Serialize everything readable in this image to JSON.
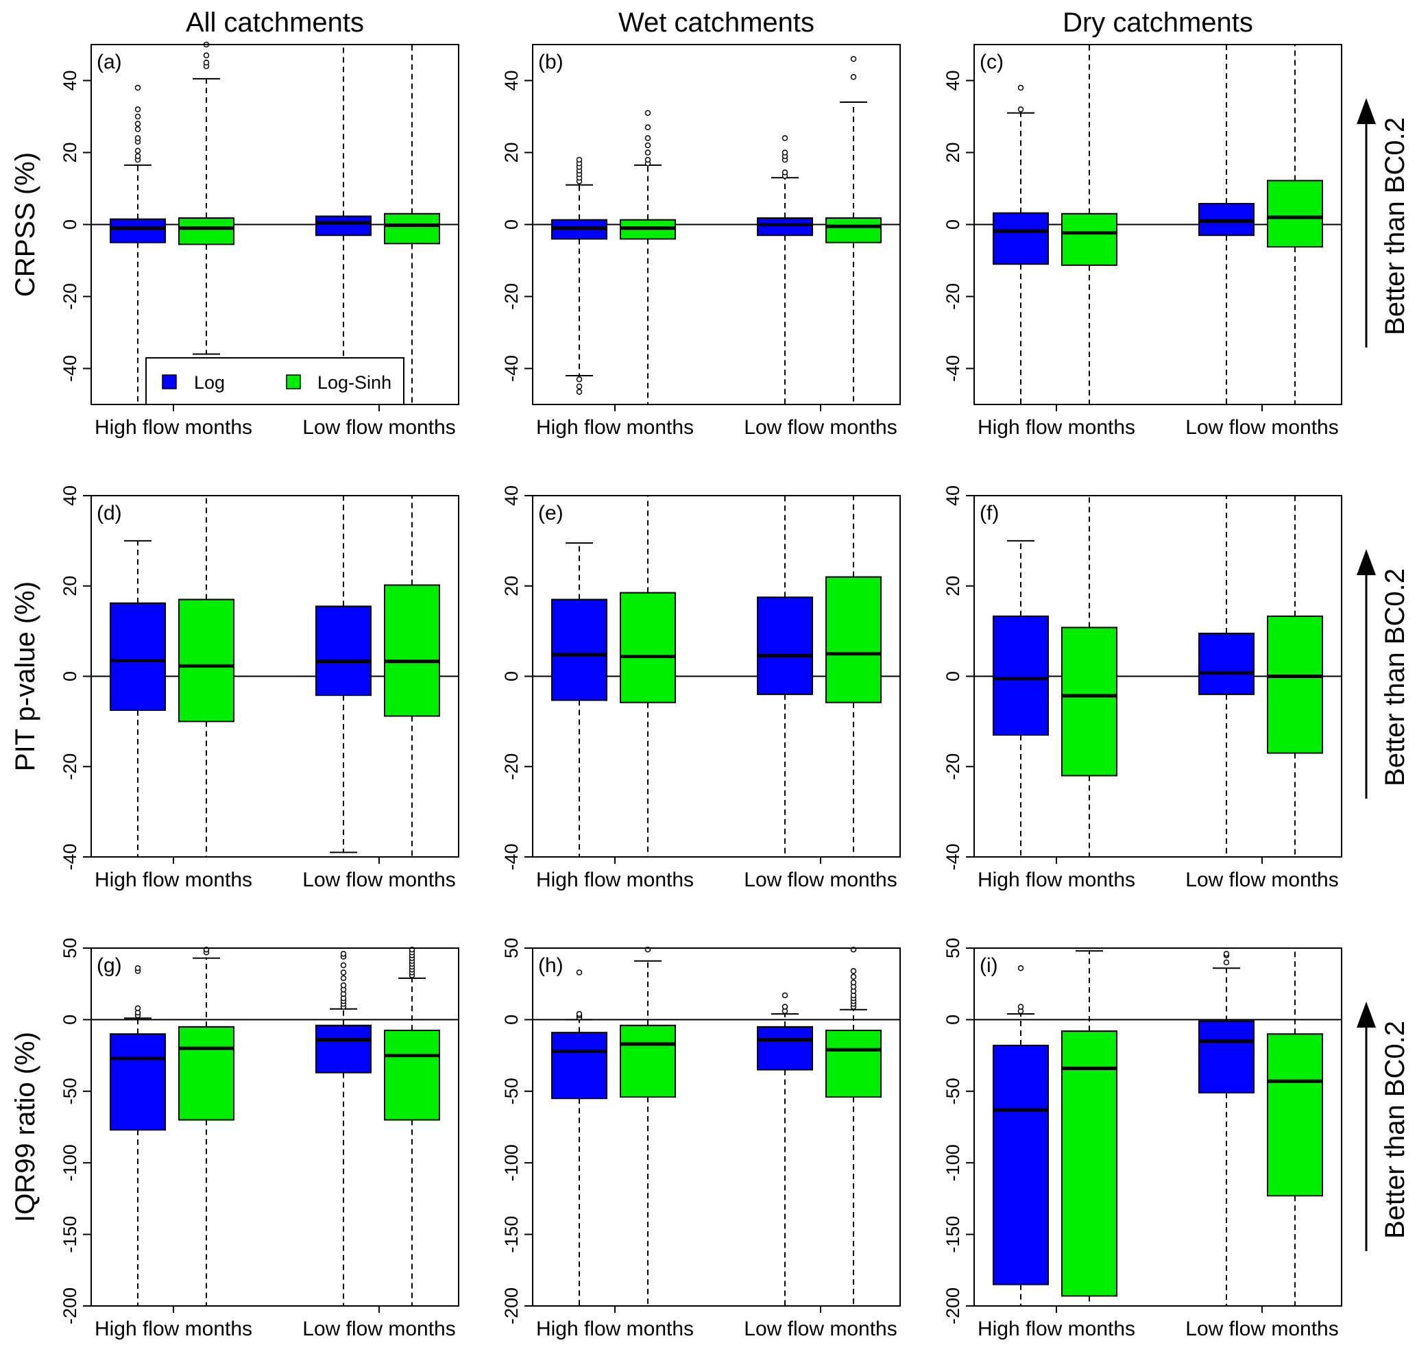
{
  "column_titles": [
    "All catchments",
    "Wet catchments",
    "Dry catchments"
  ],
  "row_labels": [
    "CRPSS (%)",
    "PIT p-value (%)",
    "IQR99 ratio (%)"
  ],
  "annotation": "Better than BC0.2",
  "legend": [
    {
      "label": "Log",
      "color": "#0000ff"
    },
    {
      "label": "Log-Sinh",
      "color": "#00ee00"
    }
  ],
  "colors": {
    "log": "#0000ff",
    "log_sinh": "#00ee00"
  },
  "chart_data": [
    {
      "type": "box",
      "panel": "(a)",
      "row": 0,
      "col": 0,
      "ylabel": "CRPSS (%)",
      "ylim": [
        -50,
        50
      ],
      "yticks": [
        -40,
        -20,
        0,
        20,
        40
      ],
      "categories": [
        "High flow months",
        "Low flow months"
      ],
      "series": [
        {
          "name": "Log",
          "boxes": [
            {
              "q1": -5,
              "median": -1,
              "q3": 1.5,
              "low": -50,
              "high": 16.5,
              "outliers": [
                18,
                19,
                20.5,
                23,
                24,
                26.5,
                28,
                30,
                32,
                38
              ]
            },
            {
              "q1": -3,
              "median": 0.5,
              "q3": 2.3,
              "low": -50,
              "high": 50,
              "outliers": []
            }
          ]
        },
        {
          "name": "Log-Sinh",
          "boxes": [
            {
              "q1": -5.5,
              "median": -1,
              "q3": 1.8,
              "low": -36,
              "high": 40.5,
              "outliers": [
                44,
                45,
                47,
                50
              ]
            },
            {
              "q1": -5.3,
              "median": -0.2,
              "q3": 3,
              "low": -50,
              "high": 50,
              "outliers": []
            }
          ]
        }
      ]
    },
    {
      "type": "box",
      "panel": "(b)",
      "row": 0,
      "col": 1,
      "ylabel": "CRPSS (%)",
      "ylim": [
        -50,
        50
      ],
      "yticks": [
        -40,
        -20,
        0,
        20,
        40
      ],
      "categories": [
        "High flow months",
        "Low flow months"
      ],
      "series": [
        {
          "name": "Log",
          "boxes": [
            {
              "q1": -4,
              "median": -1,
              "q3": 1.3,
              "low": -42,
              "high": 11,
              "outliers": [
                12,
                13,
                14,
                15,
                16,
                17,
                18,
                -43,
                -45,
                -46.5
              ]
            },
            {
              "q1": -3,
              "median": 0,
              "q3": 1.8,
              "low": -50,
              "high": 13,
              "outliers": [
                13.5,
                14.5,
                18,
                19,
                20,
                24
              ]
            }
          ]
        },
        {
          "name": "Log-Sinh",
          "boxes": [
            {
              "q1": -4,
              "median": -1,
              "q3": 1.3,
              "low": -50,
              "high": 16.5,
              "outliers": [
                17,
                18,
                20,
                22,
                24,
                27,
                31
              ]
            },
            {
              "q1": -5,
              "median": -0.5,
              "q3": 1.8,
              "low": -50,
              "high": 34,
              "outliers": [
                41,
                46
              ]
            }
          ]
        }
      ]
    },
    {
      "type": "box",
      "panel": "(c)",
      "row": 0,
      "col": 2,
      "ylabel": "CRPSS (%)",
      "ylim": [
        -50,
        50
      ],
      "yticks": [
        -40,
        -20,
        0,
        20,
        40
      ],
      "categories": [
        "High flow months",
        "Low flow months"
      ],
      "series": [
        {
          "name": "Log",
          "boxes": [
            {
              "q1": -11,
              "median": -1.8,
              "q3": 3.2,
              "low": -50,
              "high": 31,
              "outliers": [
                32,
                38
              ]
            },
            {
              "q1": -3,
              "median": 1,
              "q3": 5.8,
              "low": -50,
              "high": 50,
              "outliers": []
            }
          ]
        },
        {
          "name": "Log-Sinh",
          "boxes": [
            {
              "q1": -11.3,
              "median": -2.3,
              "q3": 3,
              "low": -50,
              "high": 50,
              "outliers": []
            },
            {
              "q1": -6.2,
              "median": 2,
              "q3": 12.2,
              "low": -50,
              "high": 50,
              "outliers": []
            }
          ]
        }
      ]
    },
    {
      "type": "box",
      "panel": "(d)",
      "row": 1,
      "col": 0,
      "ylabel": "PIT p-value (%)",
      "ylim": [
        -40,
        40
      ],
      "yticks": [
        -40,
        -20,
        0,
        20,
        40
      ],
      "categories": [
        "High flow months",
        "Low flow months"
      ],
      "series": [
        {
          "name": "Log",
          "boxes": [
            {
              "q1": -7.5,
              "median": 3.5,
              "q3": 16.2,
              "low": -40,
              "high": 30,
              "outliers": []
            },
            {
              "q1": -4.2,
              "median": 3.3,
              "q3": 15.5,
              "low": -39,
              "high": 40,
              "outliers": []
            }
          ]
        },
        {
          "name": "Log-Sinh",
          "boxes": [
            {
              "q1": -10,
              "median": 2.3,
              "q3": 17,
              "low": -40,
              "high": 40,
              "outliers": []
            },
            {
              "q1": -8.8,
              "median": 3.3,
              "q3": 20.2,
              "low": -40,
              "high": 40,
              "outliers": []
            }
          ]
        }
      ]
    },
    {
      "type": "box",
      "panel": "(e)",
      "row": 1,
      "col": 1,
      "ylabel": "PIT p-value (%)",
      "ylim": [
        -40,
        40
      ],
      "yticks": [
        -40,
        -20,
        0,
        20,
        40
      ],
      "categories": [
        "High flow months",
        "Low flow months"
      ],
      "series": [
        {
          "name": "Log",
          "boxes": [
            {
              "q1": -5.3,
              "median": 4.8,
              "q3": 17,
              "low": -40,
              "high": 29.5,
              "outliers": []
            },
            {
              "q1": -4,
              "median": 4.6,
              "q3": 17.5,
              "low": -40,
              "high": 40,
              "outliers": []
            }
          ]
        },
        {
          "name": "Log-Sinh",
          "boxes": [
            {
              "q1": -5.8,
              "median": 4.4,
              "q3": 18.5,
              "low": -40,
              "high": 40,
              "outliers": []
            },
            {
              "q1": -5.8,
              "median": 5,
              "q3": 22,
              "low": -40,
              "high": 40,
              "outliers": []
            }
          ]
        }
      ]
    },
    {
      "type": "box",
      "panel": "(f)",
      "row": 1,
      "col": 2,
      "ylabel": "PIT p-value (%)",
      "ylim": [
        -40,
        40
      ],
      "yticks": [
        -40,
        -20,
        0,
        20,
        40
      ],
      "categories": [
        "High flow months",
        "Low flow months"
      ],
      "series": [
        {
          "name": "Log",
          "boxes": [
            {
              "q1": -13,
              "median": -0.5,
              "q3": 13.3,
              "low": -40,
              "high": 30,
              "outliers": []
            },
            {
              "q1": -4,
              "median": 0.8,
              "q3": 9.5,
              "low": -40,
              "high": 40,
              "outliers": []
            }
          ]
        },
        {
          "name": "Log-Sinh",
          "boxes": [
            {
              "q1": -22,
              "median": -4.3,
              "q3": 10.8,
              "low": -40,
              "high": 40,
              "outliers": []
            },
            {
              "q1": -17,
              "median": 0,
              "q3": 13.3,
              "low": -40,
              "high": 40,
              "outliers": []
            }
          ]
        }
      ]
    },
    {
      "type": "box",
      "panel": "(g)",
      "row": 2,
      "col": 0,
      "ylabel": "IQR99 ratio (%)",
      "ylim": [
        -200,
        50
      ],
      "yticks": [
        -200,
        -150,
        -100,
        -50,
        0,
        50
      ],
      "categories": [
        "High flow months",
        "Low flow months"
      ],
      "series": [
        {
          "name": "Log",
          "boxes": [
            {
              "q1": -77,
              "median": -27,
              "q3": -10,
              "low": -200,
              "high": 1,
              "outliers": [
                3,
                5,
                8,
                34,
                36
              ]
            },
            {
              "q1": -37,
              "median": -14,
              "q3": -4,
              "low": -200,
              "high": 7.5,
              "outliers": [
                9,
                11,
                13,
                15,
                18,
                21,
                24,
                29,
                33,
                38,
                44,
                46
              ]
            }
          ]
        },
        {
          "name": "Log-Sinh",
          "boxes": [
            {
              "q1": -70,
              "median": -20,
              "q3": -5,
              "low": -200,
              "high": 43,
              "outliers": [
                47,
                49
              ]
            },
            {
              "q1": -70,
              "median": -25,
              "q3": -7.5,
              "low": -200,
              "high": 29,
              "outliers": [
                31,
                33,
                35,
                37,
                39,
                41,
                43,
                45,
                47,
                49
              ]
            }
          ]
        }
      ]
    },
    {
      "type": "box",
      "panel": "(h)",
      "row": 2,
      "col": 1,
      "ylabel": "IQR99 ratio (%)",
      "ylim": [
        -200,
        50
      ],
      "yticks": [
        -200,
        -150,
        -100,
        -50,
        0,
        50
      ],
      "categories": [
        "High flow months",
        "Low flow months"
      ],
      "series": [
        {
          "name": "Log",
          "boxes": [
            {
              "q1": -55,
              "median": -22,
              "q3": -9,
              "low": -200,
              "high": 0,
              "outliers": [
                1.5,
                3,
                4,
                33
              ]
            },
            {
              "q1": -35,
              "median": -14,
              "q3": -5,
              "low": -200,
              "high": 4,
              "outliers": [
                6,
                9,
                17
              ]
            }
          ]
        },
        {
          "name": "Log-Sinh",
          "boxes": [
            {
              "q1": -54,
              "median": -17,
              "q3": -4,
              "low": -200,
              "high": 41,
              "outliers": [
                49
              ]
            },
            {
              "q1": -54,
              "median": -21,
              "q3": -7.5,
              "low": -200,
              "high": 7,
              "outliers": [
                9,
                11,
                13,
                15,
                17,
                20,
                23,
                26,
                30,
                34,
                49
              ]
            }
          ]
        }
      ]
    },
    {
      "type": "box",
      "panel": "(i)",
      "row": 2,
      "col": 2,
      "ylabel": "IQR99 ratio (%)",
      "ylim": [
        -200,
        50
      ],
      "yticks": [
        -200,
        -150,
        -100,
        -50,
        0,
        50
      ],
      "categories": [
        "High flow months",
        "Low flow months"
      ],
      "series": [
        {
          "name": "Log",
          "boxes": [
            {
              "q1": -185,
              "median": -63,
              "q3": -18,
              "low": -200,
              "high": 4,
              "outliers": [
                6,
                9,
                36
              ]
            },
            {
              "q1": -51,
              "median": -15,
              "q3": -1,
              "low": -200,
              "high": 36,
              "outliers": [
                40,
                45,
                46
              ]
            }
          ]
        },
        {
          "name": "Log-Sinh",
          "boxes": [
            {
              "q1": -193,
              "median": -34,
              "q3": -8,
              "low": -200,
              "high": 48,
              "outliers": []
            },
            {
              "q1": -123,
              "median": -43,
              "q3": -10,
              "low": -200,
              "high": 50,
              "outliers": []
            }
          ]
        }
      ]
    }
  ]
}
